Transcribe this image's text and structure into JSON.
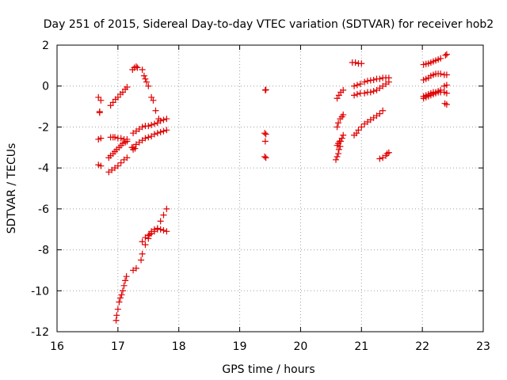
{
  "chart_data": {
    "type": "scatter",
    "title": "Day 251 of 2015, Sidereal Day-to-day VTEC variation (SDTVAR) for receiver hob2",
    "xlabel": "GPS time / hours",
    "ylabel": "SDTVAR / TECUs",
    "xlim": [
      16,
      23
    ],
    "ylim": [
      -12,
      2
    ],
    "xticks": [
      "16",
      "17",
      "18",
      "19",
      "20",
      "21",
      "22",
      "23"
    ],
    "yticks": [
      "2",
      "0",
      "-2",
      "-4",
      "-6",
      "-8",
      "-10",
      "-12"
    ],
    "grid": true,
    "marker": "+",
    "color": "#e00000",
    "series": [
      {
        "name": "s1",
        "x": [
          16.68,
          16.72,
          16.88,
          16.92,
          16.96,
          17.0,
          17.04,
          17.08,
          17.12,
          17.15
        ],
        "y": [
          -0.55,
          -0.7,
          -0.95,
          -0.8,
          -0.65,
          -0.55,
          -0.4,
          -0.3,
          -0.15,
          -0.05
        ]
      },
      {
        "name": "s2",
        "x": [
          16.7,
          16.7
        ],
        "y": [
          -1.25,
          -1.3
        ]
      },
      {
        "name": "s3",
        "x": [
          17.24,
          17.27,
          17.3,
          17.32
        ],
        "y": [
          0.8,
          0.9,
          0.95,
          0.9
        ]
      },
      {
        "name": "s4",
        "x": [
          17.4,
          17.43,
          17.45,
          17.47,
          17.5,
          17.55,
          17.58,
          17.62,
          17.67
        ],
        "y": [
          0.8,
          0.5,
          0.35,
          0.2,
          0.0,
          -0.55,
          -0.7,
          -1.2,
          -1.6
        ]
      },
      {
        "name": "s5",
        "x": [
          16.68,
          16.72,
          16.88,
          16.92,
          16.95,
          17.0,
          17.05,
          17.1,
          17.15
        ],
        "y": [
          -2.6,
          -2.55,
          -2.5,
          -2.5,
          -2.5,
          -2.55,
          -2.55,
          -2.6,
          -2.6
        ]
      },
      {
        "name": "s6",
        "x": [
          16.68,
          16.72
        ],
        "y": [
          -3.85,
          -3.9
        ]
      },
      {
        "name": "s7",
        "x": [
          16.85,
          16.88,
          16.92,
          16.95,
          16.98,
          17.02,
          17.05,
          17.08,
          17.12,
          17.15
        ],
        "y": [
          -3.5,
          -3.4,
          -3.3,
          -3.2,
          -3.1,
          -3.0,
          -2.9,
          -2.8,
          -2.75,
          -2.7
        ]
      },
      {
        "name": "s8",
        "x": [
          16.85,
          16.9,
          16.95,
          17.0,
          17.05,
          17.1,
          17.15
        ],
        "y": [
          -4.2,
          -4.1,
          -4.0,
          -3.9,
          -3.75,
          -3.6,
          -3.5
        ]
      },
      {
        "name": "s9",
        "x": [
          17.25,
          17.3,
          17.35,
          17.4,
          17.45,
          17.5,
          17.55,
          17.6,
          17.65,
          17.7,
          17.75,
          17.8
        ],
        "y": [
          -2.3,
          -2.2,
          -2.1,
          -2.0,
          -1.95,
          -1.95,
          -1.9,
          -1.85,
          -1.8,
          -1.7,
          -1.65,
          -1.6
        ]
      },
      {
        "name": "s10",
        "x": [
          17.25,
          17.3,
          17.35,
          17.4,
          17.45,
          17.5,
          17.55,
          17.6,
          17.65,
          17.7,
          17.75,
          17.8
        ],
        "y": [
          -3.0,
          -2.85,
          -2.75,
          -2.65,
          -2.55,
          -2.5,
          -2.45,
          -2.35,
          -2.3,
          -2.25,
          -2.2,
          -2.15
        ]
      },
      {
        "name": "s11",
        "x": [
          17.23,
          17.25,
          17.28
        ],
        "y": [
          -3.0,
          -3.1,
          -3.05
        ]
      },
      {
        "name": "s12",
        "x": [
          16.97,
          16.98,
          17.0,
          17.02,
          17.04,
          17.06,
          17.08,
          17.1,
          17.12,
          17.14
        ],
        "y": [
          -11.45,
          -11.2,
          -10.9,
          -10.55,
          -10.35,
          -10.2,
          -10.0,
          -9.75,
          -9.5,
          -9.3
        ]
      },
      {
        "name": "s13",
        "x": [
          17.25,
          17.3,
          17.38,
          17.4,
          17.45,
          17.5,
          17.52,
          17.55,
          17.6,
          17.65,
          17.7,
          17.75,
          17.8
        ],
        "y": [
          -9.0,
          -8.9,
          -8.5,
          -8.2,
          -7.75,
          -7.45,
          -7.25,
          -7.1,
          -7.0,
          -6.95,
          -6.6,
          -6.3,
          -6.0
        ]
      },
      {
        "name": "s14",
        "x": [
          17.4,
          17.45,
          17.5,
          17.55,
          17.6,
          17.65,
          17.7,
          17.75,
          17.8
        ],
        "y": [
          -7.6,
          -7.4,
          -7.3,
          -7.2,
          -7.1,
          -7.0,
          -7.0,
          -7.05,
          -7.1
        ]
      },
      {
        "name": "s15",
        "x": [
          19.42,
          19.43
        ],
        "y": [
          -0.2,
          -0.18
        ]
      },
      {
        "name": "s16",
        "x": [
          19.41,
          19.43,
          19.42,
          19.41,
          19.43
        ],
        "y": [
          -2.3,
          -2.35,
          -2.7,
          -3.45,
          -3.5
        ]
      },
      {
        "name": "s17",
        "x": [
          20.6,
          20.63,
          20.66,
          20.7
        ],
        "y": [
          -0.6,
          -0.45,
          -0.3,
          -0.2
        ]
      },
      {
        "name": "s18",
        "x": [
          20.6,
          20.62,
          20.65,
          20.68,
          20.7
        ],
        "y": [
          -2.0,
          -1.8,
          -1.6,
          -1.5,
          -1.4
        ]
      },
      {
        "name": "s19",
        "x": [
          20.58,
          20.6,
          20.62,
          20.63,
          20.65,
          20.66,
          20.68,
          20.7
        ],
        "y": [
          -3.6,
          -3.45,
          -3.3,
          -3.1,
          -2.95,
          -2.7,
          -2.55,
          -2.4
        ]
      },
      {
        "name": "s20",
        "x": [
          20.6,
          20.62,
          20.64
        ],
        "y": [
          -2.9,
          -2.8,
          -2.7
        ]
      },
      {
        "name": "s21",
        "x": [
          20.85,
          20.9,
          20.95,
          21.0
        ],
        "y": [
          1.15,
          1.15,
          1.1,
          1.1
        ]
      },
      {
        "name": "s22",
        "x": [
          20.88,
          20.93,
          20.98,
          21.05,
          21.1,
          21.15,
          21.2,
          21.25,
          21.3,
          21.35,
          21.4,
          21.45
        ],
        "y": [
          0.0,
          0.05,
          0.1,
          0.2,
          0.25,
          0.28,
          0.3,
          0.35,
          0.35,
          0.4,
          0.4,
          0.4
        ]
      },
      {
        "name": "s23",
        "x": [
          20.88,
          20.93,
          20.98,
          21.05,
          21.1,
          21.15,
          21.2,
          21.25,
          21.3,
          21.35,
          21.4,
          21.45
        ],
        "y": [
          -0.45,
          -0.4,
          -0.35,
          -0.35,
          -0.3,
          -0.3,
          -0.25,
          -0.2,
          -0.1,
          0.0,
          0.1,
          0.2
        ]
      },
      {
        "name": "s24",
        "x": [
          20.88,
          20.92,
          20.95,
          21.0,
          21.05,
          21.1,
          21.15,
          21.2,
          21.25,
          21.3,
          21.35
        ],
        "y": [
          -2.4,
          -2.3,
          -2.15,
          -2.0,
          -1.85,
          -1.75,
          -1.65,
          -1.55,
          -1.45,
          -1.35,
          -1.2
        ]
      },
      {
        "name": "s25",
        "x": [
          21.3,
          21.35,
          21.4,
          21.42,
          21.45
        ],
        "y": [
          -3.55,
          -3.5,
          -3.4,
          -3.3,
          -3.25
        ]
      },
      {
        "name": "s26",
        "x": [
          22.02,
          22.06,
          22.1,
          22.14,
          22.18,
          22.22,
          22.26,
          22.3
        ],
        "y": [
          1.05,
          1.08,
          1.1,
          1.15,
          1.2,
          1.25,
          1.3,
          1.35
        ]
      },
      {
        "name": "s27",
        "x": [
          22.38,
          22.4
        ],
        "y": [
          1.5,
          1.55
        ]
      },
      {
        "name": "s28",
        "x": [
          22.02,
          22.06,
          22.1,
          22.14,
          22.18,
          22.22,
          22.26,
          22.3,
          22.36,
          22.4
        ],
        "y": [
          0.3,
          0.35,
          0.4,
          0.5,
          0.55,
          0.6,
          0.6,
          0.6,
          0.55,
          0.55
        ]
      },
      {
        "name": "s29",
        "x": [
          22.02,
          22.06,
          22.1,
          22.14,
          22.18,
          22.22,
          22.26,
          22.3,
          22.36,
          22.4
        ],
        "y": [
          -0.5,
          -0.45,
          -0.4,
          -0.35,
          -0.3,
          -0.3,
          -0.25,
          -0.2,
          -0.3,
          -0.35
        ]
      },
      {
        "name": "s30",
        "x": [
          22.02,
          22.06,
          22.1,
          22.14,
          22.18,
          22.22,
          22.26,
          22.3,
          22.36,
          22.4
        ],
        "y": [
          -0.6,
          -0.55,
          -0.5,
          -0.45,
          -0.4,
          -0.35,
          -0.3,
          -0.3,
          0.0,
          0.05
        ]
      },
      {
        "name": "s31",
        "x": [
          22.37,
          22.4
        ],
        "y": [
          -0.85,
          -0.9
        ]
      }
    ]
  }
}
